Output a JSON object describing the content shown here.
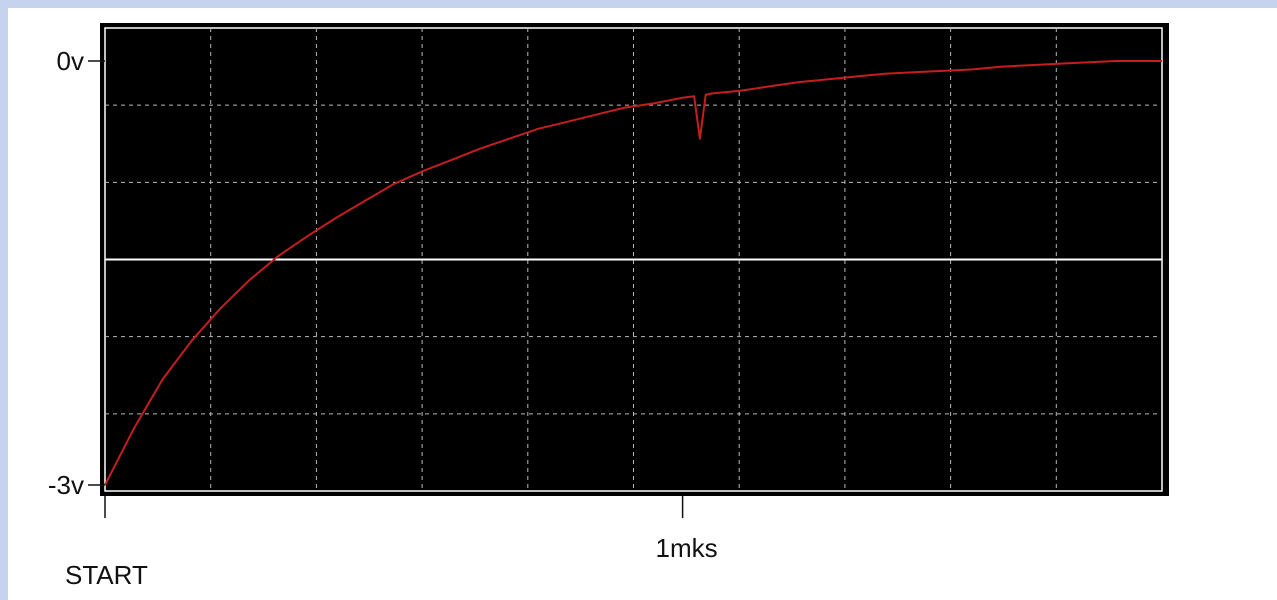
{
  "colors": {
    "frame_bg": "#c5d3ee",
    "panel_bg": "#ffffff",
    "screen_bg": "#000000",
    "grid": "#b8b8b8",
    "trace": "#c41e1e",
    "zero_line": "#ffffff"
  },
  "chart_data": {
    "type": "line",
    "title": "",
    "xlabel": "",
    "ylabel": "",
    "x_unit": "mks",
    "xlim": [
      0,
      1.83
    ],
    "ylim": [
      -3,
      0
    ],
    "y_tick_labels": [
      {
        "value": 0,
        "label": "0v"
      },
      {
        "value": -3,
        "label": "-3v"
      }
    ],
    "x_tick_labels": [
      {
        "value": 0,
        "label": "START"
      },
      {
        "value": 1,
        "label": "1mks"
      }
    ],
    "grid": true,
    "grid_divisions": {
      "x": 10,
      "y": 6
    },
    "reference_line_y": -1.5,
    "series": [
      {
        "name": "",
        "x": [
          0,
          0.05,
          0.1,
          0.15,
          0.2,
          0.25,
          0.3,
          0.35,
          0.4,
          0.45,
          0.5,
          0.55,
          0.6,
          0.65,
          0.7,
          0.75,
          0.8,
          0.85,
          0.9,
          0.95,
          1.0,
          1.02,
          1.03,
          1.04,
          1.05,
          1.1,
          1.15,
          1.2,
          1.25,
          1.3,
          1.35,
          1.4,
          1.45,
          1.5,
          1.55,
          1.6,
          1.65,
          1.7,
          1.75,
          1.8,
          1.83
        ],
        "y": [
          -3.0,
          -2.6,
          -2.25,
          -1.98,
          -1.75,
          -1.55,
          -1.38,
          -1.24,
          -1.11,
          -0.99,
          -0.87,
          -0.78,
          -0.7,
          -0.62,
          -0.55,
          -0.48,
          -0.43,
          -0.38,
          -0.33,
          -0.3,
          -0.26,
          -0.25,
          -0.55,
          -0.24,
          -0.23,
          -0.21,
          -0.18,
          -0.15,
          -0.13,
          -0.11,
          -0.09,
          -0.08,
          -0.07,
          -0.06,
          -0.04,
          -0.03,
          -0.02,
          -0.01,
          0.0,
          0.0,
          0.0
        ]
      }
    ]
  }
}
